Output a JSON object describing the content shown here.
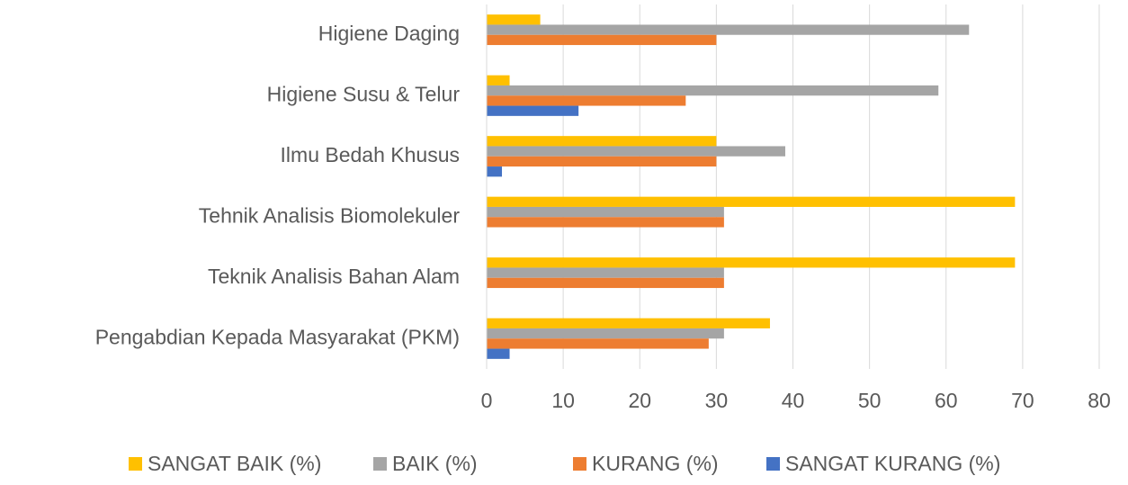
{
  "chart_data": {
    "type": "bar",
    "orientation": "horizontal",
    "categories": [
      "Higiene Daging",
      "Higiene Susu & Telur",
      "Ilmu Bedah Khusus",
      "Tehnik Analisis Biomolekuler",
      "Teknik Analisis Bahan Alam",
      "Pengabdian Kepada Masyarakat (PKM)"
    ],
    "series": [
      {
        "name": "SANGAT BAIK  (%)",
        "color": "#FFC000",
        "values": [
          7,
          3,
          30,
          69,
          69,
          37
        ]
      },
      {
        "name": "BAIK  (%)",
        "color": "#A5A5A5",
        "values": [
          63,
          59,
          39,
          31,
          31,
          31
        ]
      },
      {
        "name": "KURANG (%)",
        "color": "#ED7D31",
        "values": [
          30,
          26,
          30,
          31,
          31,
          29
        ]
      },
      {
        "name": "SANGAT KURANG (%)",
        "color": "#4472C4",
        "values": [
          0,
          12,
          2,
          0,
          0,
          3
        ]
      }
    ],
    "xlim": [
      0,
      80
    ],
    "xticks": [
      0,
      10,
      20,
      30,
      40,
      50,
      60,
      70,
      80
    ],
    "grid": true,
    "legend": "bottom"
  }
}
